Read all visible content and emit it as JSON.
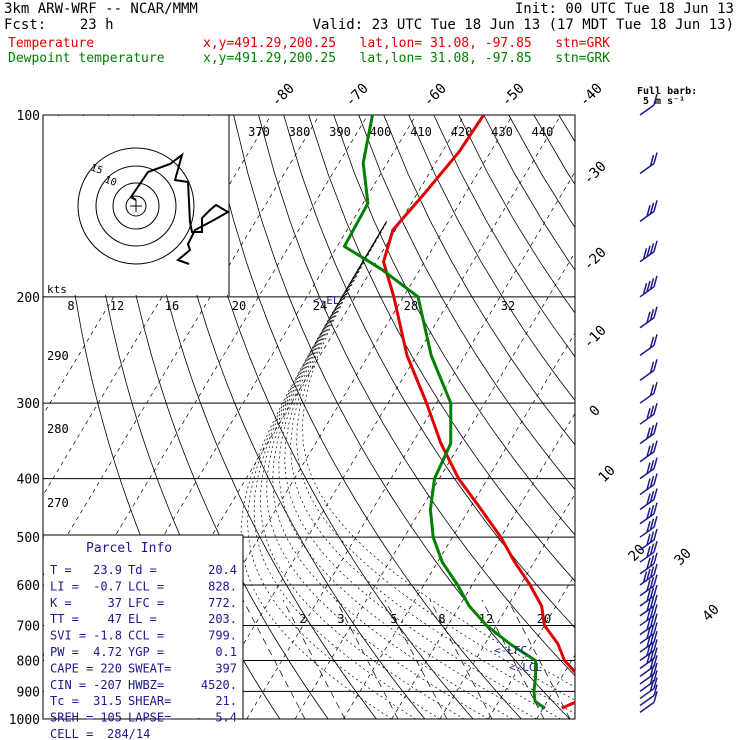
{
  "header": {
    "line1_left": "3km ARW-WRF -- NCAR/MMM",
    "line1_right": "Init: 00 UTC Tue 18 Jun 13",
    "line2_left": "Fcst:    23 h",
    "line2_right": "Valid: 23 UTC Tue 18 Jun 13 (17 MDT Tue 18 Jun 13)",
    "temp_label": "Temperature",
    "dew_label": "Dewpoint temperature",
    "location": "x,y=491.29,200.25   lat,lon= 31.08, -97.85   stn=GRK"
  },
  "wind_legend": {
    "title": "Full barb:",
    "value": "5 m s⁻¹"
  },
  "parcel_info": {
    "title": "Parcel Info",
    "rows": [
      [
        "T  =",
        "23.9",
        "Td =",
        "20.4"
      ],
      [
        "LI =",
        "-0.7",
        "LCL =",
        "828."
      ],
      [
        "K  =",
        "37",
        "LFC =",
        "772."
      ],
      [
        "TT =",
        "47",
        "EL =",
        "203."
      ],
      [
        "SVI =",
        "-1.8",
        "CCL =",
        "799."
      ],
      [
        "PW =",
        "4.72",
        "YGP =",
        "0.1"
      ],
      [
        "CAPE =",
        "220",
        "SWEAT=",
        "397"
      ],
      [
        "CIN =",
        "-207",
        "HWBZ=",
        "4520."
      ],
      [
        "Tc =",
        "31.5",
        "SHEAR=",
        "21."
      ],
      [
        "SREH =",
        "105",
        "LAPSE=",
        "5.4"
      ],
      [
        "CELL =",
        "284/14",
        "",
        ""
      ]
    ]
  },
  "hodograph": {
    "units": "kts",
    "ring_labels": [
      "15",
      "10"
    ]
  },
  "level_markers": {
    "lfc": "<-LFC",
    "lcl": "<-LCL",
    "el": "<-EL"
  },
  "colors": {
    "temperature": "#e00000",
    "dewpoint": "#008000",
    "wind": "#1a1a8c",
    "grid": "#000000"
  },
  "chart_data": {
    "type": "line",
    "diagram": "skew-T log-p",
    "pressure_axis": {
      "scale": "log",
      "ticks": [
        100,
        200,
        300,
        400,
        500,
        600,
        700,
        800,
        900,
        1000
      ],
      "ylim": [
        1000,
        100
      ]
    },
    "isotherm_labels": [
      "-80",
      "-70",
      "-60",
      "-50",
      "-40",
      "-30",
      "-20",
      "-10",
      "0",
      "10",
      "20",
      "30",
      "40"
    ],
    "theta_e_labels": [
      "370",
      "380",
      "390",
      "400",
      "410",
      "420",
      "430",
      "440"
    ],
    "mixing_ratio_labels": [
      "2",
      "3",
      "5",
      "8",
      "12",
      "20"
    ],
    "upper_scale_labels": [
      "8",
      "12",
      "16",
      "20",
      "24",
      "28",
      "32"
    ],
    "adiabat_labels": [
      "290",
      "280",
      "270"
    ],
    "series": [
      {
        "name": "Temperature",
        "points": [
          [
            100,
            -66
          ],
          [
            115,
            -66.5
          ],
          [
            135,
            -68.5
          ],
          [
            155,
            -70.5
          ],
          [
            175,
            -68.5
          ],
          [
            200,
            -62
          ],
          [
            250,
            -52
          ],
          [
            300,
            -42
          ],
          [
            350,
            -34
          ],
          [
            400,
            -26
          ],
          [
            450,
            -17.5
          ],
          [
            500,
            -10
          ],
          [
            550,
            -4
          ],
          [
            600,
            2
          ],
          [
            650,
            7
          ],
          [
            700,
            10
          ],
          [
            750,
            15
          ],
          [
            800,
            18.5
          ],
          [
            850,
            23.5
          ],
          [
            900,
            26.8
          ],
          [
            925,
            27.5
          ],
          [
            945,
            25.2
          ],
          [
            960,
            23.9
          ]
        ]
      },
      {
        "name": "Dewpoint temperature",
        "points": [
          [
            100,
            -89
          ],
          [
            120,
            -85
          ],
          [
            140,
            -79
          ],
          [
            165,
            -78.5
          ],
          [
            180,
            -68
          ],
          [
            200,
            -57
          ],
          [
            250,
            -47
          ],
          [
            300,
            -37
          ],
          [
            350,
            -32
          ],
          [
            400,
            -31
          ],
          [
            450,
            -28
          ],
          [
            500,
            -24
          ],
          [
            550,
            -19
          ],
          [
            600,
            -13
          ],
          [
            650,
            -8
          ],
          [
            700,
            -2
          ],
          [
            750,
            5
          ],
          [
            800,
            12.5
          ],
          [
            850,
            14.5
          ],
          [
            900,
            16
          ],
          [
            935,
            17.5
          ],
          [
            960,
            20.4
          ]
        ]
      }
    ],
    "wind_barbs": [
      {
        "p": 100,
        "speed_ms": 5
      },
      {
        "p": 125,
        "speed_ms": 10
      },
      {
        "p": 150,
        "speed_ms": 15
      },
      {
        "p": 175,
        "speed_ms": 20
      },
      {
        "p": 200,
        "speed_ms": 20
      },
      {
        "p": 225,
        "speed_ms": 15
      },
      {
        "p": 250,
        "speed_ms": 10
      },
      {
        "p": 275,
        "speed_ms": 10
      },
      {
        "p": 300,
        "speed_ms": 10
      },
      {
        "p": 325,
        "speed_ms": 15
      },
      {
        "p": 350,
        "speed_ms": 15
      },
      {
        "p": 375,
        "speed_ms": 15
      },
      {
        "p": 400,
        "speed_ms": 15
      },
      {
        "p": 425,
        "speed_ms": 15
      },
      {
        "p": 450,
        "speed_ms": 15
      },
      {
        "p": 475,
        "speed_ms": 15
      },
      {
        "p": 500,
        "speed_ms": 15
      },
      {
        "p": 525,
        "speed_ms": 15
      },
      {
        "p": 550,
        "speed_ms": 15
      },
      {
        "p": 575,
        "speed_ms": 15
      },
      {
        "p": 600,
        "speed_ms": 20
      },
      {
        "p": 625,
        "speed_ms": 15
      },
      {
        "p": 650,
        "speed_ms": 15
      },
      {
        "p": 675,
        "speed_ms": 15
      },
      {
        "p": 700,
        "speed_ms": 15
      },
      {
        "p": 725,
        "speed_ms": 15
      },
      {
        "p": 750,
        "speed_ms": 15
      },
      {
        "p": 775,
        "speed_ms": 15
      },
      {
        "p": 800,
        "speed_ms": 15
      },
      {
        "p": 825,
        "speed_ms": 15
      },
      {
        "p": 850,
        "speed_ms": 10
      },
      {
        "p": 875,
        "speed_ms": 10
      },
      {
        "p": 900,
        "speed_ms": 10
      },
      {
        "p": 925,
        "speed_ms": 10
      },
      {
        "p": 950,
        "speed_ms": 5
      },
      {
        "p": 975,
        "speed_ms": 5
      }
    ]
  }
}
